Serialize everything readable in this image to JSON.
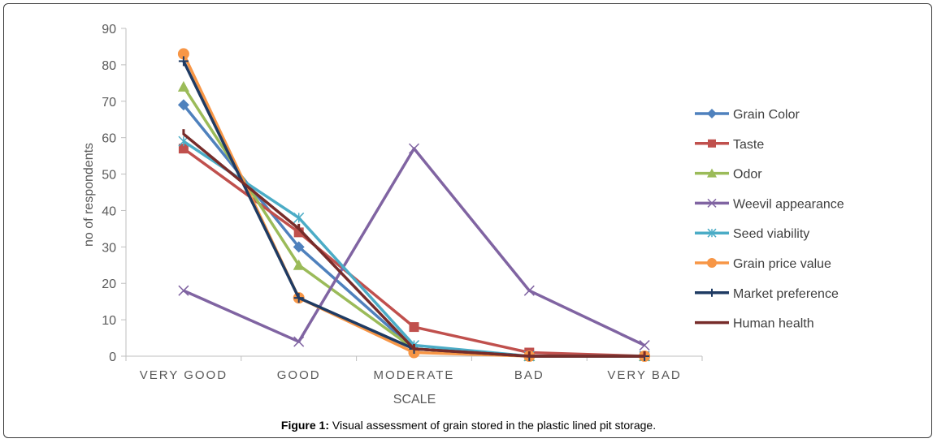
{
  "caption": {
    "label": "Figure 1:",
    "text": " Visual assessment of grain stored in the plastic lined pit storage."
  },
  "chart_data": {
    "type": "line",
    "title": "",
    "xlabel": "SCALE",
    "ylabel": "no of respondents",
    "ylim": [
      0,
      90
    ],
    "yticks": [
      0,
      10,
      20,
      30,
      40,
      50,
      60,
      70,
      80,
      90
    ],
    "categories": [
      "VERY GOOD",
      "GOOD",
      "MODERATE",
      "BAD",
      "VERY BAD"
    ],
    "grid": false,
    "legend": "right",
    "series": [
      {
        "name": "Grain Color",
        "color": "#4F81BD",
        "marker": "diamond",
        "values": [
          69,
          30,
          2,
          0,
          0
        ]
      },
      {
        "name": "Taste",
        "color": "#C0504D",
        "marker": "square",
        "values": [
          57,
          34,
          8,
          1,
          0
        ]
      },
      {
        "name": "Odor",
        "color": "#9BBB59",
        "marker": "triangle",
        "values": [
          74,
          25,
          2,
          0,
          0
        ]
      },
      {
        "name": "Weevil appearance",
        "color": "#8064A2",
        "marker": "x",
        "values": [
          18,
          4,
          57,
          18,
          3
        ]
      },
      {
        "name": "Seed viability",
        "color": "#4BACC6",
        "marker": "star",
        "values": [
          59,
          38,
          3,
          0,
          0
        ]
      },
      {
        "name": "Grain price value",
        "color": "#F79646",
        "marker": "circle",
        "values": [
          83,
          16,
          1,
          0,
          0
        ]
      },
      {
        "name": "Market preference",
        "color": "#1F3B63",
        "marker": "plus",
        "values": [
          81,
          16,
          2,
          0,
          0
        ]
      },
      {
        "name": "Human health",
        "color": "#772C2A",
        "marker": "none",
        "values": [
          61,
          35,
          2,
          0,
          0
        ]
      }
    ]
  }
}
